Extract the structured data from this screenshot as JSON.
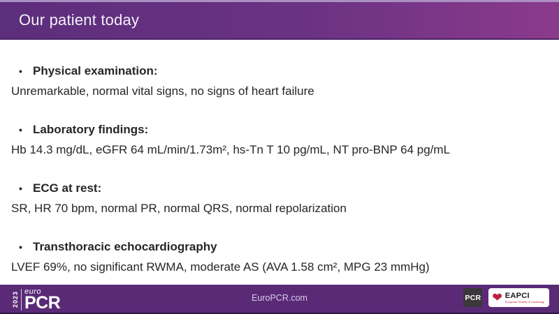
{
  "header": {
    "title": "Our patient today"
  },
  "bullets": {
    "glyph": "•"
  },
  "sections": [
    {
      "heading": "Physical examination:",
      "detail": "Unremarkable, normal vital signs, no signs of heart failure"
    },
    {
      "heading": "Laboratory findings:",
      "detail": "Hb 14.3 mg/dL, eGFR 64 mL/min/1.73m², hs-Tn T 10 pg/mL, NT pro-BNP 64 pg/mL"
    },
    {
      "heading": "ECG at rest:",
      "detail": "SR, HR 70 bpm, normal PR, normal QRS, normal repolarization"
    },
    {
      "heading": "Transthoracic echocardiography",
      "detail": "LVEF 69%, no significant RWMA, moderate AS (AVA 1.58 cm², MPG 23 mmHg)"
    }
  ],
  "footer": {
    "url": "EuroPCR.com",
    "logo": {
      "year": "2023",
      "euro": "euro",
      "pcr": "PCR"
    },
    "pcr_badge": "PCR",
    "eapci": {
      "heart_icon": "heart-icon",
      "name": "EAPCI",
      "tagline": "European Society of Cardiology"
    }
  },
  "colors": {
    "header_gradient_left": "#5c2e7c",
    "header_gradient_right": "#8b3a8b",
    "header_top_strip": "#ab90c3",
    "footer_background": "#5a2a77",
    "body_text": "#262626",
    "title_text": "#f4f0f8",
    "eapci_red": "#c01f3a"
  }
}
